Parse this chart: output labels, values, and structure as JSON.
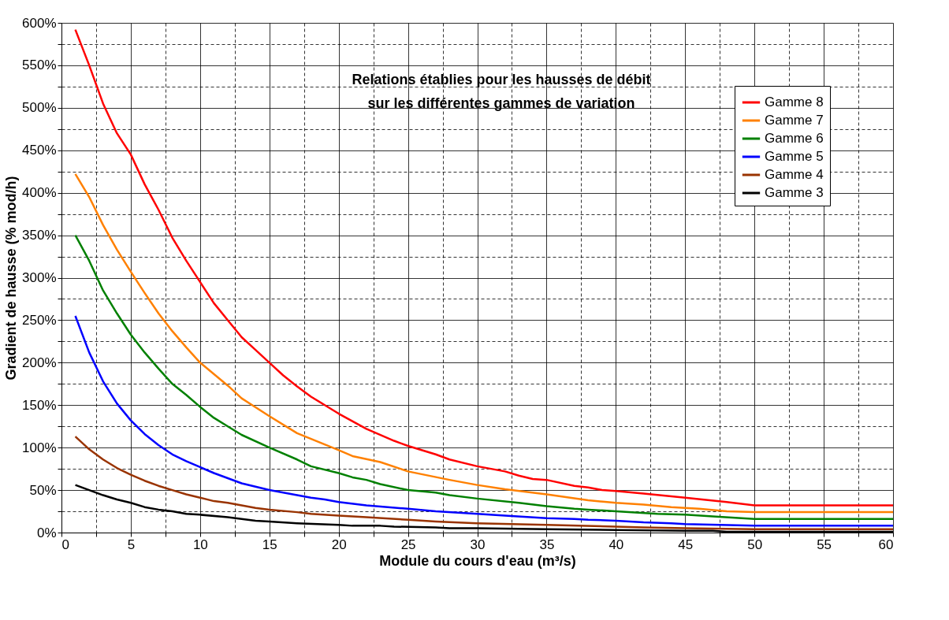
{
  "chart_data": {
    "type": "line",
    "title": "Relations établies pour les hausses de débit\nsur les différentes gammes de variation",
    "xlabel": "Module du cours d'eau (m³/s)",
    "ylabel": "Gradient de hausse (% mod/h)",
    "xlim": [
      0,
      60
    ],
    "xticks": [
      0,
      {
        "value": 2.5,
        "label": null
      },
      5,
      {
        "value": 7.5,
        "label": null
      },
      10,
      {
        "value": 12.5,
        "label": null
      },
      15,
      {
        "value": 17.5,
        "label": null
      },
      20,
      {
        "value": 22.5,
        "label": null
      },
      25,
      {
        "value": 27.5,
        "label": null
      },
      30,
      {
        "value": 32.5,
        "label": null
      },
      35,
      {
        "value": 37.5,
        "label": null
      },
      40,
      {
        "value": 42.5,
        "label": null
      },
      45,
      {
        "value": 47.5,
        "label": null
      },
      50,
      {
        "value": 52.5,
        "label": null
      },
      55,
      {
        "value": 57.5,
        "label": null
      },
      60
    ],
    "ylim": [
      0,
      600
    ],
    "yticks": [
      {
        "value": 0,
        "label": "0%"
      },
      {
        "value": 25,
        "label": null
      },
      {
        "value": 50,
        "label": "50%"
      },
      {
        "value": 75,
        "label": null
      },
      {
        "value": 100,
        "label": "100%"
      },
      {
        "value": 125,
        "label": null
      },
      {
        "value": 150,
        "label": "150%"
      },
      {
        "value": 175,
        "label": null
      },
      {
        "value": 200,
        "label": "200%"
      },
      {
        "value": 225,
        "label": null
      },
      {
        "value": 250,
        "label": "250%"
      },
      {
        "value": 275,
        "label": null
      },
      {
        "value": 300,
        "label": "300%"
      },
      {
        "value": 325,
        "label": null
      },
      {
        "value": 350,
        "label": "350%"
      },
      {
        "value": 375,
        "label": null
      },
      {
        "value": 400,
        "label": "400%"
      },
      {
        "value": 425,
        "label": null
      },
      {
        "value": 450,
        "label": "450%"
      },
      {
        "value": 475,
        "label": null
      },
      {
        "value": 500,
        "label": "500%"
      },
      {
        "value": 525,
        "label": null
      },
      {
        "value": 550,
        "label": "550%"
      },
      {
        "value": 575,
        "label": null
      },
      {
        "value": 600,
        "label": "600%"
      }
    ],
    "grid": true,
    "legend": "top right",
    "line_style": "solid",
    "marker": "none",
    "series": [
      {
        "name": "Gamme 8",
        "color": "#ff0000",
        "x": [
          1,
          2,
          3,
          4,
          5,
          6,
          7,
          8,
          9,
          10,
          11,
          12,
          13,
          14,
          15,
          16,
          17,
          18,
          19,
          20,
          22,
          24,
          25,
          27,
          28,
          30,
          32,
          33,
          34,
          35,
          37,
          38,
          39,
          40,
          42,
          45,
          48,
          50,
          60
        ],
        "values": [
          592,
          550,
          505,
          470,
          445,
          410,
          380,
          347,
          320,
          295,
          270,
          250,
          230,
          215,
          200,
          185,
          172,
          160,
          150,
          140,
          122,
          108,
          102,
          92,
          86,
          78,
          72,
          67,
          63,
          62,
          55,
          53,
          50,
          49,
          46,
          41,
          36,
          32,
          32
        ]
      },
      {
        "name": "Gamme 7",
        "color": "#ff8000",
        "x": [
          1,
          2,
          3,
          4,
          5,
          6,
          7,
          8,
          9,
          10,
          12,
          13,
          15,
          17,
          20,
          21,
          23,
          25,
          28,
          30,
          32,
          35,
          38,
          40,
          42,
          44,
          45,
          46,
          48,
          50,
          60
        ],
        "values": [
          422,
          395,
          362,
          333,
          307,
          282,
          258,
          237,
          218,
          200,
          173,
          158,
          137,
          117,
          97,
          90,
          83,
          72,
          62,
          56,
          51,
          45,
          38,
          35,
          33,
          30,
          29,
          28,
          25,
          24,
          24
        ]
      },
      {
        "name": "Gamme 6",
        "color": "#008000",
        "x": [
          1,
          2,
          3,
          4,
          5,
          6,
          7,
          8,
          9,
          10,
          11,
          12,
          13,
          15,
          17,
          18,
          20,
          21,
          22,
          23,
          25,
          27,
          28,
          30,
          33,
          35,
          37,
          38,
          40,
          43,
          45,
          47,
          50,
          60
        ],
        "values": [
          350,
          320,
          285,
          258,
          233,
          212,
          193,
          175,
          162,
          148,
          135,
          125,
          115,
          100,
          86,
          78,
          70,
          65,
          62,
          57,
          50,
          47,
          44,
          40,
          35,
          31,
          28,
          27,
          25,
          22,
          21,
          19,
          16,
          16
        ]
      },
      {
        "name": "Gamme 5",
        "color": "#0000ff",
        "x": [
          1,
          2,
          3,
          4,
          5,
          6,
          7,
          8,
          9,
          10,
          11,
          12,
          13,
          15,
          17,
          18,
          19,
          20,
          22,
          25,
          27,
          30,
          32,
          35,
          37,
          38,
          40,
          42,
          44,
          45,
          50,
          60
        ],
        "values": [
          255,
          212,
          178,
          152,
          132,
          116,
          103,
          92,
          84,
          77,
          70,
          64,
          58,
          50,
          44,
          41,
          39,
          36,
          32,
          28,
          25,
          22,
          20,
          17,
          16,
          15,
          14,
          12,
          11,
          10,
          8,
          8
        ]
      },
      {
        "name": "Gamme 4",
        "color": "#993300",
        "x": [
          1,
          2,
          3,
          4,
          5,
          6,
          7,
          8,
          9,
          10,
          11,
          12,
          13,
          14,
          15,
          17,
          18,
          20,
          22,
          25,
          27,
          30,
          35,
          40,
          42,
          45,
          50,
          60
        ],
        "values": [
          113,
          98,
          86,
          76,
          68,
          61,
          55,
          50,
          45,
          41,
          37,
          35,
          32,
          29,
          27,
          24,
          22,
          20,
          18,
          15,
          13,
          11,
          9,
          7,
          6,
          5,
          4,
          4
        ]
      },
      {
        "name": "Gamme 3",
        "color": "#000000",
        "x": [
          1,
          2,
          3,
          4,
          5,
          6,
          7,
          8,
          9,
          10,
          12,
          13,
          14,
          15,
          17,
          20,
          21,
          23,
          24,
          27,
          28,
          30,
          35,
          40,
          45,
          47,
          48,
          60
        ],
        "values": [
          56,
          50,
          44,
          39,
          35,
          30,
          27,
          25,
          22,
          21,
          18,
          16,
          14,
          13,
          11,
          9,
          8,
          8,
          7,
          6,
          5,
          5,
          4,
          3,
          2,
          2,
          1,
          1
        ]
      }
    ]
  }
}
